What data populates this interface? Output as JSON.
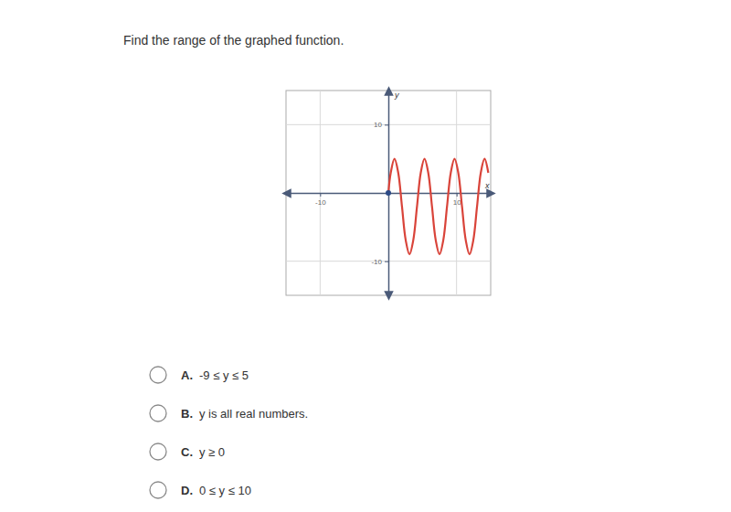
{
  "question": "Find the range of the graphed function.",
  "chart_data": {
    "type": "line",
    "x": [
      0,
      0.35,
      0.9,
      1.45,
      2.0,
      2.55,
      3.1,
      3.65,
      4.2,
      4.75,
      5.3,
      5.85,
      6.4,
      6.95,
      7.5,
      8.05,
      8.6,
      9.15,
      9.7,
      10.25,
      10.8,
      11.35,
      11.9,
      12.45,
      13.0,
      13.55,
      14.1,
      14.65
    ],
    "values": [
      0,
      2.95,
      5,
      2.95,
      -2,
      -6.95,
      -9,
      -6.95,
      -2,
      2.95,
      5,
      2.95,
      -2,
      -6.95,
      -9,
      -6.95,
      -2,
      2.95,
      5,
      2.95,
      -2,
      -6.95,
      -9,
      -6.95,
      -2,
      2.95,
      5,
      2.95
    ],
    "color": "#d9443a",
    "xlabel": "x",
    "ylabel": "y",
    "xlim": [
      -15,
      15
    ],
    "ylim": [
      -15,
      15
    ],
    "xticks": [
      -10,
      10
    ],
    "yticks": [
      -10,
      10
    ],
    "grid": true
  },
  "options": [
    {
      "letter": "A.",
      "text": "-9 ≤ y ≤ 5"
    },
    {
      "letter": "B.",
      "text": "y is all real numbers."
    },
    {
      "letter": "C.",
      "text": "y ≥ 0"
    },
    {
      "letter": "D.",
      "text": "0 ≤ y ≤ 10"
    }
  ]
}
